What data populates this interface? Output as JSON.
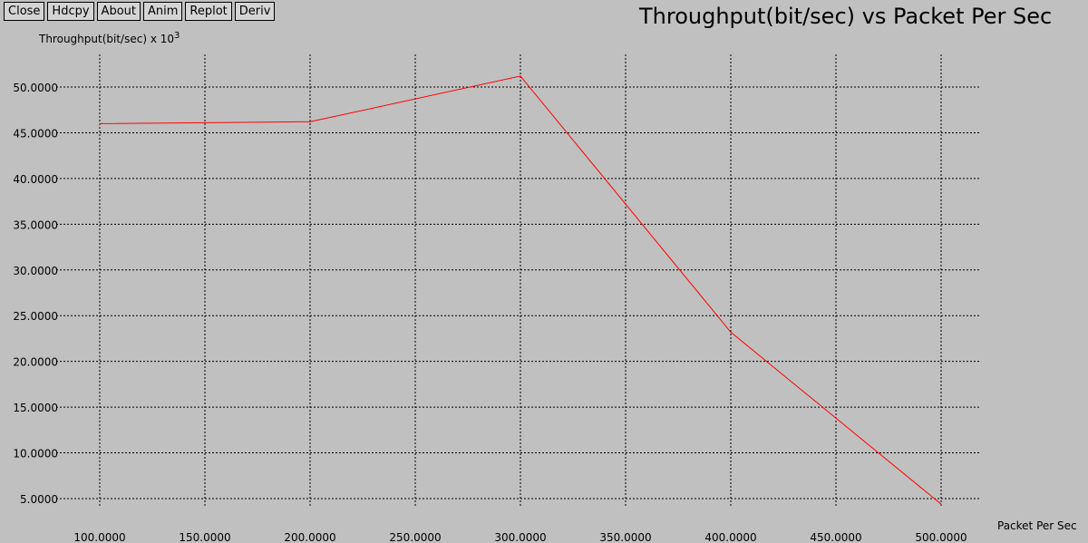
{
  "toolbar": {
    "buttons": [
      "Close",
      "Hdcpy",
      "About",
      "Anim",
      "Replot",
      "Deriv"
    ]
  },
  "chart_data": {
    "type": "line",
    "title": "Throughput(bit/sec) vs Packet Per Sec",
    "ylabel": "Throughput(bit/sec) x 10",
    "ylabel_exponent": "3",
    "xlabel": "Packet Per Sec",
    "x_ticks": [
      "100.0000",
      "150.0000",
      "200.0000",
      "250.0000",
      "300.0000",
      "350.0000",
      "400.0000",
      "450.0000",
      "500.0000"
    ],
    "y_ticks": [
      "5.0000",
      "10.0000",
      "15.0000",
      "20.0000",
      "25.0000",
      "30.0000",
      "35.0000",
      "40.0000",
      "45.0000",
      "50.0000"
    ],
    "x_tick_values": [
      100,
      150,
      200,
      250,
      300,
      350,
      400,
      450,
      500
    ],
    "y_tick_values": [
      5,
      10,
      15,
      20,
      25,
      30,
      35,
      40,
      45,
      50
    ],
    "xlim": [
      100,
      500
    ],
    "ylim": [
      5,
      50
    ],
    "grid": true,
    "series": [
      {
        "x": [
          100,
          200,
          300,
          400,
          500
        ],
        "y": [
          46.0,
          46.2,
          51.2,
          23.2,
          4.4
        ],
        "color": "#ff0000"
      }
    ]
  }
}
